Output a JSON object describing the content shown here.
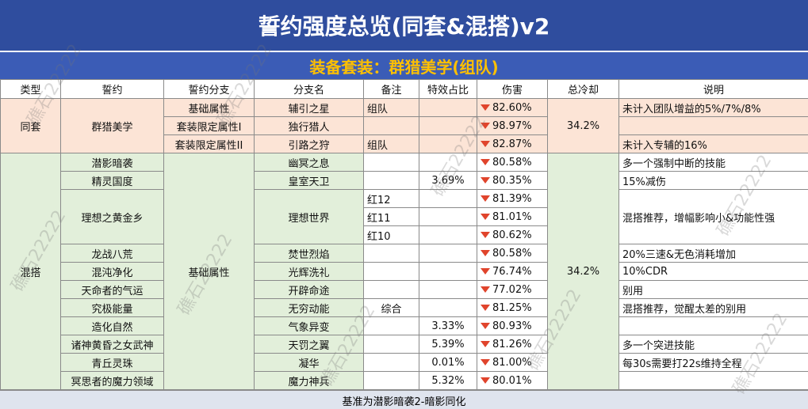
{
  "header": {
    "title": "誓约强度总览(同套&混搭)v2",
    "subtitle": "装备套装：群猎美学(组队)"
  },
  "watermark": "礁石22222",
  "table": {
    "columns": [
      "类型",
      "誓约",
      "誓约分支",
      "分支名",
      "备注",
      "特效占比",
      "伤害",
      "总冷却",
      "说明"
    ],
    "groups": [
      {
        "type": "同套",
        "cooldown": "34.2%"
      },
      {
        "type": "混搭",
        "cooldown": "34.2%"
      }
    ],
    "rows": [
      {
        "oath": "群猎美学",
        "branch": "基础属性",
        "sub": "辅引之星",
        "note": "组队",
        "damage": "82.60%",
        "desc": "未计入团队增益的5%/7%/8%"
      },
      {
        "branch": "套装限定属性I",
        "sub": "独行猎人",
        "damage": "98.97%"
      },
      {
        "branch": "套装限定属性II",
        "sub": "引路之狩",
        "note": "组队",
        "damage": "82.87%",
        "desc": "未计入专辅的16%"
      },
      {
        "oath": "潜影暗袭",
        "branch": "基础属性",
        "sub": "幽冥之息",
        "damage": "80.58%",
        "desc": "多一个强制中断的技能"
      },
      {
        "oath": "精灵国度",
        "sub": "皇室天卫",
        "ratio": "3.69%",
        "damage": "80.35%",
        "desc": "15%减伤"
      },
      {
        "oath": "理想之黄金乡",
        "sub": "理想世界",
        "note": "红12",
        "damage": "81.39%",
        "desc": "混搭推荐，增幅影响小&功能性强"
      },
      {
        "note": "红11",
        "damage": "81.01%"
      },
      {
        "note": "红10",
        "damage": "80.62%"
      },
      {
        "oath": "龙战八荒",
        "sub": "焚世烈焰",
        "damage": "80.58%",
        "desc": "20%三速&无色消耗增加"
      },
      {
        "oath": "混沌净化",
        "sub": "光辉洗礼",
        "damage": "76.74%",
        "desc": "10%CDR"
      },
      {
        "oath": "天命者的气运",
        "sub": "开辟命途",
        "damage": "77.02%",
        "desc": "别用"
      },
      {
        "oath": "究极能量",
        "sub": "无穷动能",
        "note": "综合",
        "damage": "81.25%",
        "desc": "混搭推荐，觉醒太差的别用"
      },
      {
        "oath": "造化自然",
        "sub": "气象异变",
        "ratio": "3.33%",
        "damage": "80.93%"
      },
      {
        "oath": "诸神黄昏之女武神",
        "sub": "天罚之翼",
        "ratio": "5.39%",
        "damage": "81.26%",
        "desc": "多一个突进技能"
      },
      {
        "oath": "青丘灵珠",
        "sub": "凝华",
        "ratio": "0.01%",
        "damage": "81.00%",
        "desc": "每30s需要打22s维持全程"
      },
      {
        "oath": "冥思者的魔力领域",
        "sub": "魔力神兵",
        "ratio": "5.32%",
        "damage": "80.01%"
      }
    ]
  },
  "footer": "基准为潜影暗袭2-暗影同化"
}
